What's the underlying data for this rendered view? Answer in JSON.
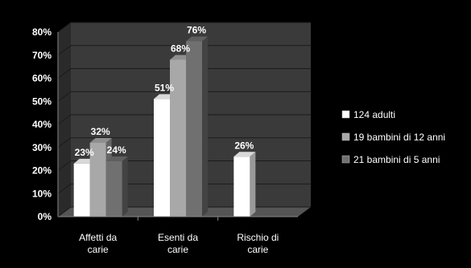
{
  "chart_data": {
    "type": "bar",
    "title": "",
    "xlabel": "",
    "ylabel": "",
    "categories": [
      [
        "Affetti da",
        "carie"
      ],
      [
        "Esenti da",
        "carie"
      ],
      [
        "Rischio di",
        "carie"
      ]
    ],
    "series": [
      {
        "name": "124 adulti",
        "values": [
          23,
          51,
          26
        ],
        "color": "#ffffff"
      },
      {
        "name": "19 bambini di 12 anni",
        "values": [
          32,
          68,
          null
        ],
        "color": "#a8a8a8"
      },
      {
        "name": "21 bambini di 5 anni",
        "values": [
          24,
          76,
          null
        ],
        "color": "#707070"
      }
    ],
    "value_suffix": "%",
    "ylim": [
      0,
      80
    ],
    "yticks": [
      "0%",
      "10%",
      "20%",
      "30%",
      "40%",
      "50%",
      "60%",
      "70%",
      "80%"
    ],
    "grid": true,
    "legend_position": "right",
    "background_color": "#000000",
    "plot_wall_color": "#3a3a3a",
    "text_color": "#ffffff",
    "style": "3d-clustered-column"
  }
}
